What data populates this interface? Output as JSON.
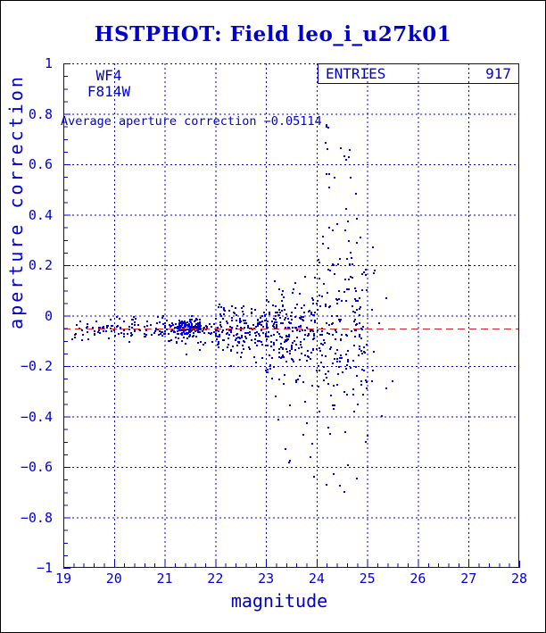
{
  "header": {
    "title": "HSTPHOT: Field leo_i_u27k01"
  },
  "colors": {
    "blue": "#0000cc",
    "red": "#cc2222",
    "background": "#ffffff",
    "outer_border": "#000000"
  },
  "plot": {
    "camera_label": "WF4",
    "filter_label": "F814W",
    "annotation": "Average aperture correction −0.05114",
    "entries_label": "ENTRIES",
    "entries_value": "917"
  },
  "chart_data": {
    "type": "scatter",
    "title": "HSTPHOT: Field leo_i_u27k01",
    "xlabel": "magnitude",
    "ylabel": "aperture correction",
    "xlim": [
      19,
      28
    ],
    "ylim": [
      -1,
      1
    ],
    "x_ticks": [
      19,
      20,
      21,
      22,
      23,
      24,
      25,
      26,
      27,
      28
    ],
    "x_tick_labels": [
      "19",
      "20",
      "21",
      "22",
      "23",
      "24",
      "25",
      "26",
      "27",
      "28"
    ],
    "y_ticks": [
      1,
      0.8,
      0.6,
      0.4,
      0.2,
      0,
      -0.2,
      -0.4,
      -0.6,
      -0.8,
      -1
    ],
    "y_tick_labels": [
      "1",
      "0.8",
      "0.6",
      "0.4",
      "0.2",
      "0",
      "−0.2",
      "−0.4",
      "−0.6",
      "−0.8",
      "−1"
    ],
    "x_minor_step": 0.2,
    "y_minor_step": 0.05,
    "grid": "dotted-major",
    "legend": "none",
    "marker": "square-2px",
    "n_points": 917,
    "entries": 917,
    "average_line": -0.05114,
    "seed": 9170427,
    "clusters": [
      {
        "n": 40,
        "mag": [
          19.05,
          20.0
        ],
        "dist": "gauss",
        "mean": -0.055,
        "sd": 0.02,
        "range": [
          -0.13,
          0.0
        ]
      },
      {
        "n": 70,
        "mag": [
          20.0,
          21.05
        ],
        "dist": "gauss",
        "mean": -0.055,
        "sd": 0.022,
        "range": [
          -0.17,
          0.0
        ]
      },
      {
        "n": 150,
        "mag": [
          21.05,
          21.9
        ],
        "mag_dist": "gauss",
        "mag_mean": 21.45,
        "mag_sd": 0.18,
        "dist": "gauss",
        "mean": -0.048,
        "sd": 0.014,
        "range": [
          -0.1,
          -0.005
        ]
      },
      {
        "n": 50,
        "mag": [
          21.0,
          22.0
        ],
        "dist": "gauss",
        "mean": -0.065,
        "sd": 0.04,
        "range": [
          -0.2,
          0.0
        ]
      },
      {
        "n": 160,
        "mag": [
          22.0,
          23.0
        ],
        "dist": "gauss",
        "mean": -0.06,
        "sd": 0.05,
        "range": [
          -0.28,
          0.05
        ]
      },
      {
        "n": 210,
        "mag": [
          23.0,
          24.0
        ],
        "dist": "gauss",
        "mean": -0.07,
        "sd": 0.1,
        "range": [
          -0.55,
          0.3
        ]
      },
      {
        "n": 170,
        "mag": [
          24.0,
          25.0
        ],
        "dist": "gauss",
        "mean": -0.06,
        "sd": 0.16,
        "range": [
          -0.72,
          0.45
        ]
      },
      {
        "n": 30,
        "mag": [
          24.1,
          24.8
        ],
        "dist": "uniform",
        "range": [
          0.05,
          0.78
        ]
      },
      {
        "n": 20,
        "mag": [
          23.3,
          24.8
        ],
        "dist": "uniform",
        "range": [
          -0.75,
          -0.35
        ]
      },
      {
        "n": 12,
        "mag": [
          24.8,
          25.2
        ],
        "dist": "gauss",
        "mean": -0.05,
        "sd": 0.18,
        "range": [
          -0.5,
          0.3
        ]
      },
      {
        "n": 5,
        "mag": [
          25.2,
          25.5
        ],
        "dist": "uniform",
        "range": [
          -0.4,
          0.25
        ]
      }
    ]
  }
}
